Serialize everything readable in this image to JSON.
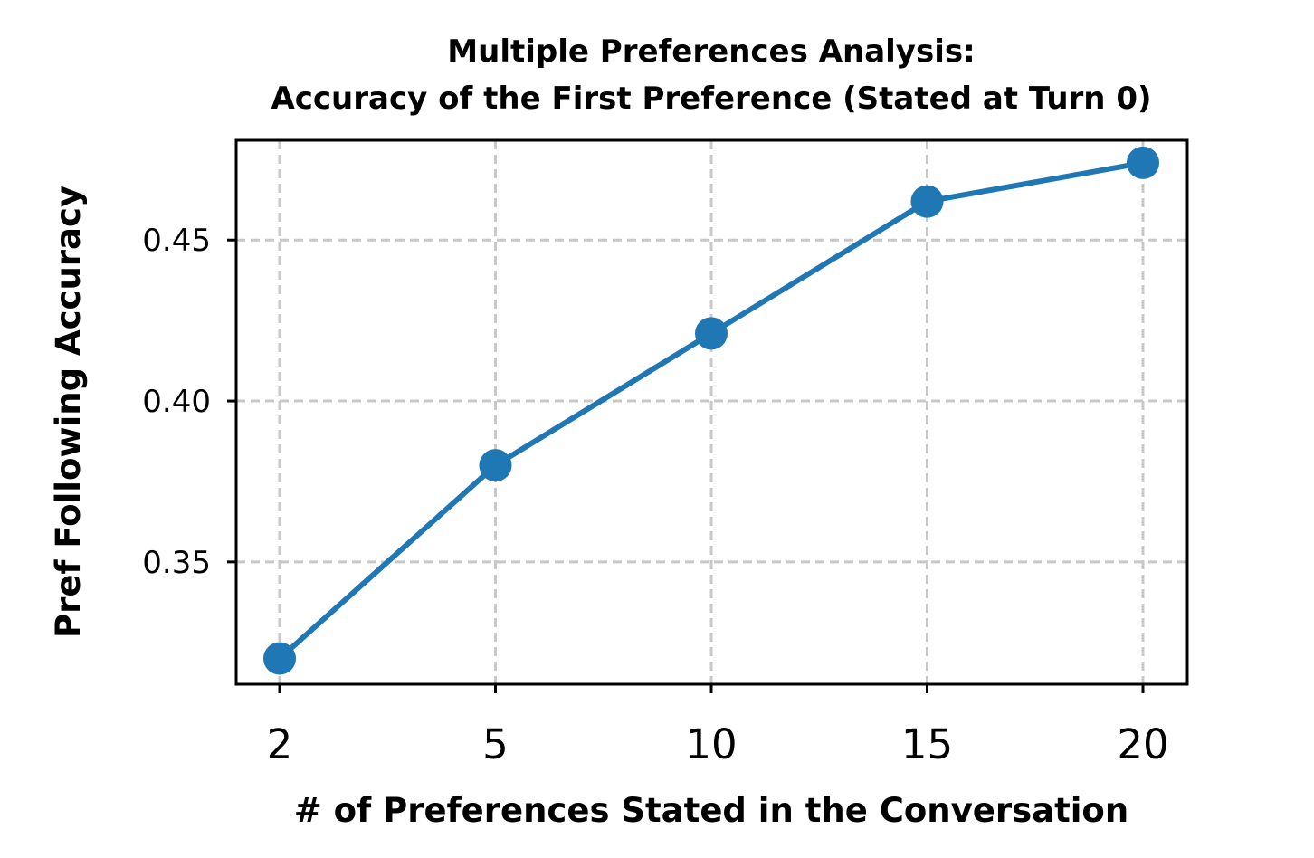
{
  "chart_data": {
    "type": "line",
    "title": [
      "Multiple Preferences Analysis:",
      "Accuracy of the First Preference (Stated at Turn 0)"
    ],
    "xlabel": "# of Preferences Stated in the Conversation",
    "ylabel": "Pref Following Accuracy",
    "x": [
      2,
      5,
      10,
      15,
      20
    ],
    "x_tick_labels": [
      "2",
      "5",
      "10",
      "15",
      "20"
    ],
    "x_scale": "categorical-evenly-spaced",
    "y_ticks": [
      0.35,
      0.4,
      0.45
    ],
    "y_tick_labels": [
      "0.35",
      "0.40",
      "0.45"
    ],
    "ylim": [
      0.312,
      0.481
    ],
    "grid": true,
    "series": [
      {
        "values": [
          0.32,
          0.38,
          0.421,
          0.462,
          0.474
        ],
        "color": "#1f77b4",
        "marker": "circle"
      }
    ]
  }
}
